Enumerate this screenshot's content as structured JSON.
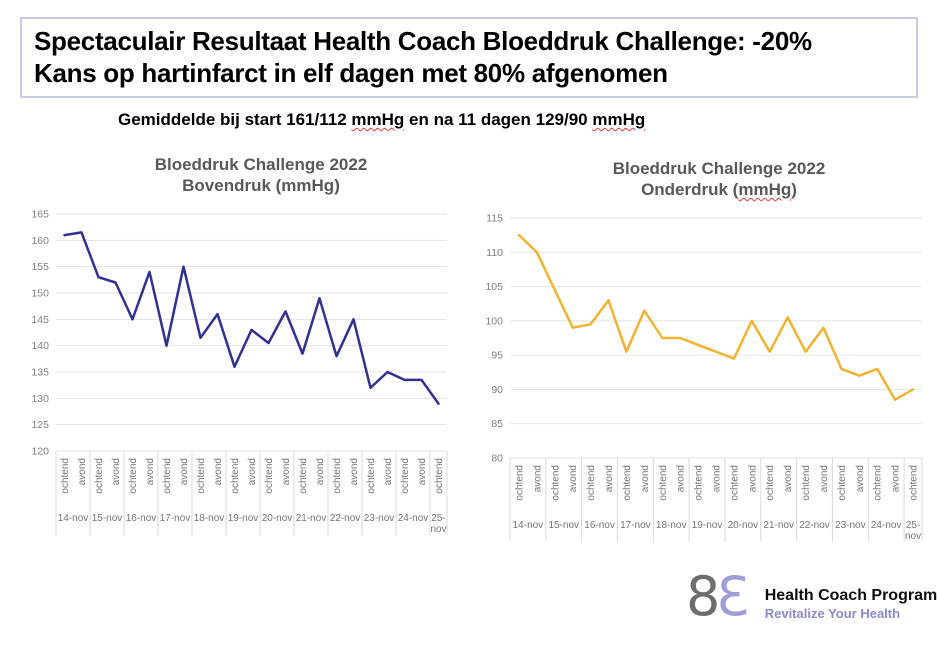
{
  "title": {
    "line1": "Spectaculair Resultaat Health Coach Bloeddruk Challenge: -20%",
    "line2": "Kans op hartinfarct in elf dagen met 80% afgenomen"
  },
  "subtitle": {
    "seg1": "Gemiddelde bij start 161/112 ",
    "seg2": "mmHg",
    "seg3": " en na 11 dagen 129/90 ",
    "seg4": "mmHg"
  },
  "chart_data": [
    {
      "type": "line",
      "title_line1": "Bloeddruk Challenge 2022",
      "title2_prefix": "Bovendruk (mmHg)",
      "title2_mis": "",
      "title2_suffix": "",
      "legend": "none",
      "grid": "horizontal",
      "ylim": [
        120,
        165
      ],
      "ystep": 5,
      "x_days": [
        "14-nov",
        "15-nov",
        "16-nov",
        "17-nov",
        "18-nov",
        "19-nov",
        "20-nov",
        "21-nov",
        "22-nov",
        "23-nov",
        "24-nov",
        "25-nov"
      ],
      "x_times": [
        "ochtend",
        "avond"
      ],
      "x_last_day_times": [
        "ochtend"
      ],
      "series": [
        {
          "name": "Bovendruk",
          "color": "#303193",
          "values": [
            161,
            161.5,
            153,
            152,
            145,
            154,
            140,
            155,
            141.5,
            146,
            136,
            143,
            140.5,
            146.5,
            138.5,
            149,
            138,
            145,
            132,
            135,
            133.5,
            133.5,
            129
          ]
        }
      ]
    },
    {
      "type": "line",
      "title_line1": "Bloeddruk Challenge 2022",
      "title2_prefix": "Onderdruk (",
      "title2_mis": "mmHg",
      "title2_suffix": ")",
      "legend": "none",
      "grid": "horizontal",
      "ylim": [
        80,
        115
      ],
      "ystep": 5,
      "x_days": [
        "14-nov",
        "15-nov",
        "16-nov",
        "17-nov",
        "18-nov",
        "19-nov",
        "20-nov",
        "21-nov",
        "22-nov",
        "23-nov",
        "24-nov",
        "25-nov"
      ],
      "x_times": [
        "ochtend",
        "avond"
      ],
      "x_last_day_times": [
        "ochtend"
      ],
      "series": [
        {
          "name": "Onderdruk",
          "color": "#f2b32e",
          "values": [
            112.5,
            110,
            104.5,
            99,
            99.5,
            103,
            95.5,
            101.5,
            97.5,
            97.5,
            96.5,
            95.5,
            94.5,
            100,
            95.5,
            100.5,
            95.5,
            99,
            93,
            92,
            93,
            88.5,
            90
          ]
        }
      ]
    }
  ],
  "logo": {
    "mark_left": "8",
    "mark_right": "3",
    "name": "Health Coach Program",
    "tagline": "Revitalize Your Health",
    "name_color": "#0d0d0d",
    "tagline_color": "#8a8ace"
  },
  "colors": {
    "title_box_border": "#c9cbe9",
    "chart_title": "#595959",
    "axis_label": "#7f7f7f",
    "gridline": "#e3e3e3",
    "day_separator": "#d9d9d9",
    "squiggle": "#e03a3a"
  }
}
